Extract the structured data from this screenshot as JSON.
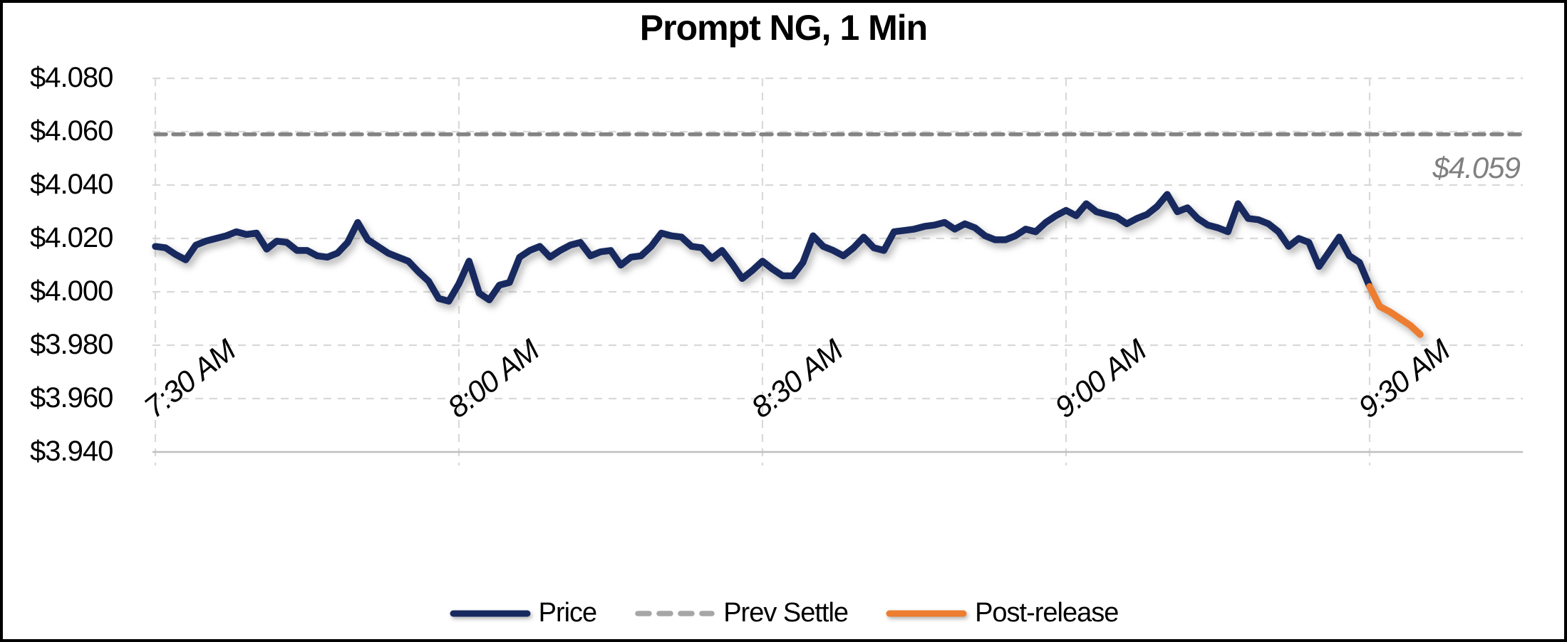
{
  "title": "Prompt NG, 1 Min",
  "annotation": {
    "prev_settle_value_label": "$4.059"
  },
  "legend": {
    "items": [
      {
        "label": "Price",
        "color": "#17295e",
        "style": "solid"
      },
      {
        "label": "Prev Settle",
        "color": "#a6a6a6",
        "style": "dashed"
      },
      {
        "label": "Post-release",
        "color": "#ed7d31",
        "style": "solid"
      }
    ]
  },
  "chart_data": {
    "type": "line",
    "title": "Prompt NG, 1 Min",
    "x_axis": {
      "minutes_origin": "7:30 AM",
      "tick_labels": [
        "7:30 AM",
        "8:00 AM",
        "8:30 AM",
        "9:00 AM",
        "9:30 AM"
      ],
      "tick_minutes": [
        0,
        30,
        60,
        90,
        120
      ],
      "range_minutes": [
        0,
        135
      ]
    },
    "y_axis": {
      "tick_labels": [
        "$4.080",
        "$4.060",
        "$4.040",
        "$4.020",
        "$4.000",
        "$3.980",
        "$3.960",
        "$3.940"
      ],
      "tick_values": [
        4.08,
        4.06,
        4.04,
        4.02,
        4.0,
        3.98,
        3.96,
        3.94
      ],
      "ylim": [
        3.94,
        4.08
      ]
    },
    "grid": true,
    "prev_settle": {
      "value": 4.059,
      "label": "$4.059",
      "color": "#848484"
    },
    "series": [
      {
        "name": "Price",
        "color": "#17295e",
        "x_start_minute": 0,
        "x_step_minutes": 1,
        "values": [
          4.017,
          4.0165,
          4.014,
          4.012,
          4.0175,
          4.019,
          4.02,
          4.021,
          4.0225,
          4.0215,
          4.022,
          4.016,
          4.019,
          4.0185,
          4.0155,
          4.0155,
          4.0135,
          4.013,
          4.0145,
          4.0185,
          4.026,
          4.0195,
          4.017,
          4.0145,
          4.013,
          4.0115,
          4.0075,
          4.004,
          3.9975,
          3.9965,
          4.003,
          4.0115,
          3.9995,
          3.997,
          4.0025,
          4.0035,
          4.013,
          4.0155,
          4.017,
          4.013,
          4.0155,
          4.0175,
          4.0185,
          4.0135,
          4.015,
          4.0155,
          4.01,
          4.013,
          4.0135,
          4.017,
          4.022,
          4.021,
          4.0205,
          4.017,
          4.0165,
          4.0125,
          4.0155,
          4.0105,
          4.005,
          4.008,
          4.0115,
          4.0085,
          4.006,
          4.006,
          4.011,
          4.021,
          4.017,
          4.0155,
          4.0135,
          4.0165,
          4.0205,
          4.0165,
          4.0155,
          4.0225,
          4.023,
          4.0235,
          4.0245,
          4.025,
          4.026,
          4.0235,
          4.0255,
          4.024,
          4.021,
          4.0195,
          4.0195,
          4.021,
          4.0235,
          4.0225,
          4.026,
          4.0285,
          4.0305,
          4.0285,
          4.033,
          4.03,
          4.029,
          4.028,
          4.0255,
          4.0275,
          4.029,
          4.032,
          4.0365,
          4.03,
          4.0315,
          4.0275,
          4.025,
          4.024,
          4.0225,
          4.033,
          4.0275,
          4.027,
          4.0255,
          4.0225,
          4.017,
          4.02,
          4.0185,
          4.0095,
          4.015,
          4.0205,
          4.0135,
          4.011,
          4.002
        ]
      },
      {
        "name": "Post-release",
        "color": "#ed7d31",
        "x_start_minute": 120,
        "x_step_minutes": 1,
        "values": [
          4.002,
          3.9945,
          3.9925,
          3.99,
          3.9875,
          3.984
        ]
      }
    ]
  }
}
